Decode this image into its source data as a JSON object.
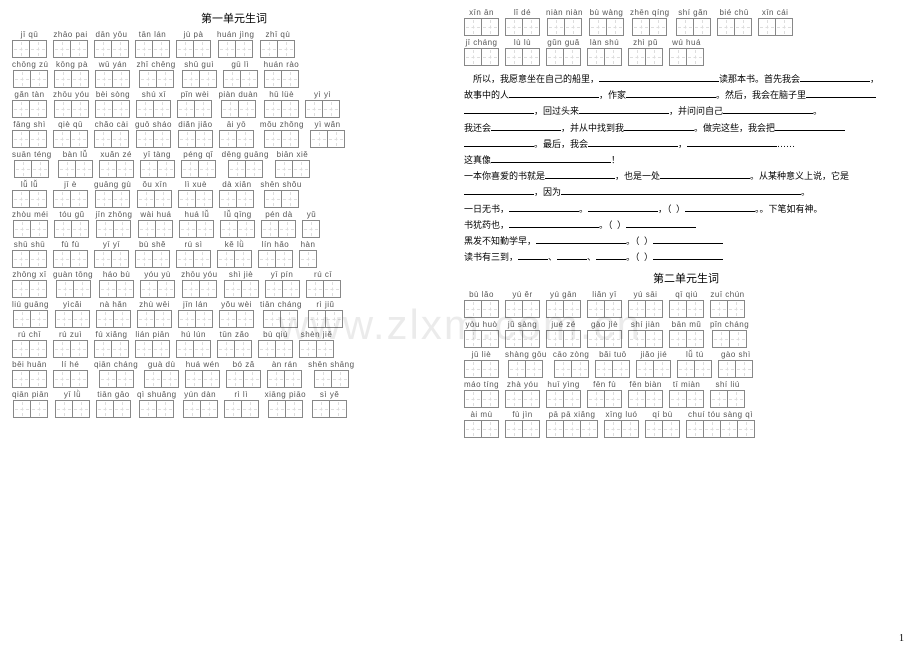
{
  "titles": {
    "unit1": "第一单元生词",
    "unit2": "第二单元生词"
  },
  "watermark": "www.zlxm.com.cn",
  "pagenum": "1",
  "left_rows": [
    [
      [
        "jī",
        "qū",
        2
      ],
      [
        "zhāo",
        "pai",
        2
      ],
      [
        "dān",
        "yōu",
        2
      ],
      [
        "tān",
        "lán",
        2
      ],
      [
        "jù",
        "pà",
        2
      ],
      [
        "huán",
        "jìng",
        2
      ],
      [
        "zhī",
        "qù",
        2
      ]
    ],
    [
      [
        "chōng",
        "zú",
        2
      ],
      [
        "kōng",
        "pà",
        2
      ],
      [
        "wū",
        "yán",
        2
      ],
      [
        "zhī",
        "chēng",
        2
      ],
      [
        "shū",
        "guì",
        2
      ],
      [
        "gū",
        "lì",
        2
      ],
      [
        "huán",
        "rào",
        2
      ]
    ],
    [
      [
        "gǎn",
        "tàn",
        2
      ],
      [
        "zhōu",
        "yóu",
        2
      ],
      [
        "bèi",
        "sòng",
        2
      ],
      [
        "shú",
        "xī",
        2
      ],
      [
        "pǐn",
        "wèi",
        2
      ],
      [
        "piàn",
        "duàn",
        2
      ],
      [
        "hū",
        "lüè",
        2
      ],
      [
        "yì",
        "yì",
        2
      ]
    ],
    [
      [
        "fāng",
        "shì",
        2
      ],
      [
        "qiè",
        "qū",
        2
      ],
      [
        "chǎo",
        "cài",
        2
      ],
      [
        "guō",
        "sháo",
        2
      ],
      [
        "diǎn",
        "jiǎo",
        2
      ],
      [
        "āi",
        "yō",
        2
      ],
      [
        "mǒu",
        "zhǒng",
        2
      ],
      [
        "yì",
        "wǎn",
        2
      ]
    ],
    [
      [
        "suān",
        "téng",
        2
      ],
      [
        "bàn",
        "lǚ",
        2
      ],
      [
        "xuǎn",
        "zé",
        2
      ],
      [
        "yī",
        "tàng",
        2
      ],
      [
        "péng",
        "qǐ",
        2
      ],
      [
        "dēng",
        "guāng",
        2
      ],
      [
        "biān",
        "xiě",
        2
      ]
    ],
    [
      [
        "lǚ",
        "lǚ",
        2
      ],
      [
        "jī",
        "è",
        2
      ],
      [
        "guāng",
        "gù",
        2
      ],
      [
        "ǒu",
        "xīn",
        2
      ],
      [
        "lì",
        "xuè",
        2
      ],
      [
        "dà",
        "xiǎn",
        2
      ],
      [
        "shēn",
        "shǒu",
        2
      ]
    ],
    [
      [
        "zhòu",
        "méi",
        2
      ],
      [
        "tóu",
        "gǔ",
        2
      ],
      [
        "jīn",
        "zhōng",
        2
      ],
      [
        "wài",
        "huá",
        2
      ],
      [
        "huá",
        "lǚ",
        2
      ],
      [
        "lǚ",
        "qīng",
        2
      ],
      [
        "pén",
        "dà",
        2
      ],
      [
        "yǔ",
        1
      ]
    ],
    [
      [
        "shū",
        "shū",
        2
      ],
      [
        "fù",
        "fù",
        2
      ],
      [
        "yī",
        "yī",
        2
      ],
      [
        "bù",
        "shě",
        2
      ],
      [
        "rú",
        "sì",
        2
      ],
      [
        "kě",
        "lǜ",
        2
      ],
      [
        "lín",
        "hǎo",
        2
      ],
      [
        "hàn",
        1
      ]
    ],
    [
      [
        "zhōng",
        "xī",
        2
      ],
      [
        "guàn",
        "tōng",
        2
      ],
      [
        "háo",
        "bù",
        2
      ],
      [
        "yóu",
        "yù",
        2
      ],
      [
        "zhōu",
        "yóu",
        2
      ],
      [
        "shì",
        "jiè",
        2
      ],
      [
        "yī",
        "pín",
        2
      ],
      [
        "rú",
        "cī",
        2
      ]
    ],
    [
      [
        "liú",
        "guāng",
        2
      ],
      [
        "yìcǎi",
        2
      ],
      [
        "nà",
        "hǎn",
        2
      ],
      [
        "zhù",
        "wēi",
        2
      ],
      [
        "jīn",
        "lán",
        2
      ],
      [
        "yǒu",
        "wèi",
        2
      ],
      [
        "tiān",
        "cháng",
        2
      ],
      [
        "rì",
        "jiǔ",
        2
      ]
    ],
    [
      [
        "rú",
        "chī",
        2
      ],
      [
        "rú",
        "zuì",
        2
      ],
      [
        "fú",
        "xiǎng",
        2
      ],
      [
        "lián",
        "piān",
        2
      ],
      [
        "hú",
        "lún",
        2
      ],
      [
        "tūn",
        "zǎo",
        2
      ],
      [
        "bù",
        "qiú",
        2
      ],
      [
        "shèn",
        "jiě",
        2
      ]
    ],
    [
      [
        "bēi",
        "huān",
        2
      ],
      [
        "lí",
        "hé",
        2
      ],
      [
        "qiān",
        "cháng",
        2
      ],
      [
        "guà",
        "dù",
        2
      ],
      [
        "huá",
        "wén",
        2
      ],
      [
        "bó",
        "zǎ",
        2
      ],
      [
        "àn",
        "rán",
        2
      ],
      [
        "shēn",
        "shāng",
        2
      ]
    ],
    [
      [
        "qiān",
        "piān",
        2
      ],
      [
        "yī",
        "lǜ",
        2
      ],
      [
        "tiān",
        "gāo",
        2
      ],
      [
        "qì",
        "shuǎng",
        2
      ],
      [
        "yún",
        "dàn",
        2
      ],
      [
        "rì",
        "lì",
        2
      ],
      [
        "xiāng",
        "piāo",
        2
      ],
      [
        "sì",
        "yě",
        2
      ]
    ]
  ],
  "right_top_rows": [
    [
      [
        "xīn",
        "ān",
        2
      ],
      [
        "lǐ",
        "dé",
        2
      ],
      [
        "niàn",
        "niàn",
        2
      ],
      [
        "bù",
        "wàng",
        2
      ],
      [
        "zhēn",
        "qíng",
        2
      ],
      [
        "shí",
        "gǎn",
        2
      ],
      [
        "bié",
        "chū",
        2
      ],
      [
        "xīn",
        "cái",
        2
      ]
    ],
    [
      [
        "jī",
        "cháng",
        2
      ],
      [
        "lù",
        "lù",
        2
      ],
      [
        "gǔn",
        "guǎ",
        2
      ],
      [
        "làn",
        "shú",
        2
      ],
      [
        "zhì",
        "pǔ",
        2
      ],
      [
        "wú",
        "huá",
        2
      ]
    ]
  ],
  "fill": {
    "p1": "所以，我愿意坐在自己的船里，",
    "p1b": "读那本书。首先我会",
    "p2": "故事中的人",
    "p2b": "，作家",
    "p2c": "。然后，我会在脑子里",
    "p3": "，回过头来",
    "p3b": "，并问问自己",
    "p4": "我还会",
    "p4b": "，并从中找到我",
    "p4c": "。做完这些，我会把",
    "p5": "。最后，我会",
    "p6": "这真像",
    "p7": "一本你喜爱的书就是",
    "p7b": "，也是一处",
    "p7c": "。从某种意义上说，它是",
    "p8": "，因为",
    "l1": "一日无书，",
    "l1b": "。下笔如有神。",
    "l2": "书犹药也，",
    "l3": "黑发不知勤学早，",
    "l4": "读书有三到，"
  },
  "right_bottom_rows": [
    [
      [
        "bù",
        "lǎo",
        2
      ],
      [
        "yú",
        "ěr",
        2
      ],
      [
        "yú",
        "gān",
        2
      ],
      [
        "liǎn",
        "yī",
        2
      ],
      [
        "yú",
        "sāi",
        2
      ],
      [
        "qī",
        "qiú",
        2
      ],
      [
        "zuī",
        "chún",
        2
      ]
    ],
    [
      [
        "yòu",
        "huò",
        2
      ],
      [
        "jū",
        "sàng",
        2
      ],
      [
        "jué",
        "zé",
        2
      ],
      [
        "gào",
        "jiè",
        2
      ],
      [
        "shí",
        "jiàn",
        2
      ],
      [
        "bān",
        "mǔ",
        2
      ],
      [
        "pǐn",
        "cháng",
        2
      ]
    ],
    [
      [
        "jū",
        "liè",
        2
      ],
      [
        "shàng",
        "gōu",
        2
      ],
      [
        "cāo",
        "zòng",
        2
      ],
      [
        "bǎi",
        "tuō",
        2
      ],
      [
        "jiǎo",
        "jié",
        2
      ],
      [
        "lǚ",
        "tú",
        2
      ],
      [
        "gào",
        "shì",
        2
      ]
    ],
    [
      [
        "máo",
        "tíng",
        2
      ],
      [
        "zhà",
        "yóu",
        2
      ],
      [
        "huī",
        "yìng",
        2
      ],
      [
        "fēn",
        "fù",
        2
      ],
      [
        "fēn",
        "biàn",
        2
      ],
      [
        "tī",
        "miàn",
        2
      ],
      [
        "shí",
        "liú",
        2
      ]
    ],
    [
      [
        "ài",
        "mù",
        2
      ],
      [
        "fù",
        "jìn",
        2
      ],
      [
        "pā",
        "pā",
        "xiǎng",
        3
      ],
      [
        "xīng",
        "luó",
        2
      ],
      [
        "qí",
        "bù",
        2
      ],
      [
        "chuí",
        "tóu",
        "sàng",
        "qì",
        4
      ]
    ]
  ]
}
